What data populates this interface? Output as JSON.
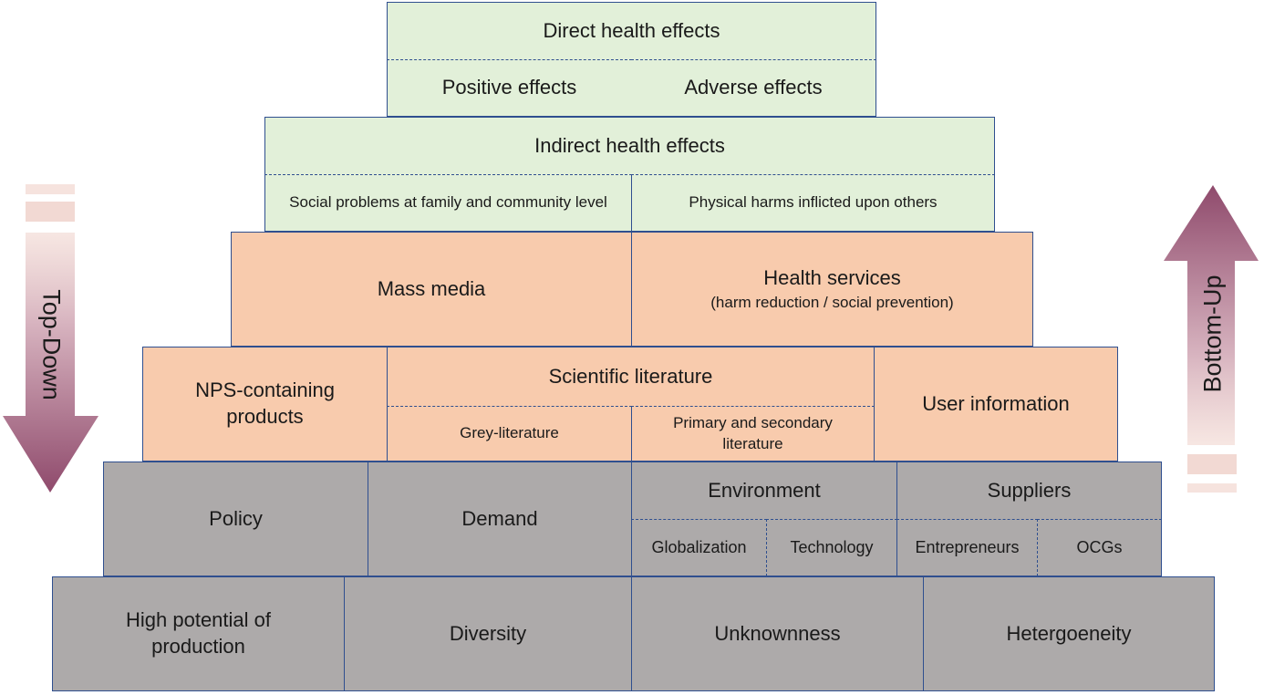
{
  "pyramid": {
    "level1": {
      "title": "Direct health effects",
      "left": "Positive effects",
      "right": "Adverse effects"
    },
    "level2": {
      "title": "Indirect health effects",
      "left": "Social problems at family and community level",
      "right": "Physical harms inflicted upon others"
    },
    "level3": {
      "left": "Mass media",
      "right_title": "Health services",
      "right_sub": "(harm reduction / social prevention)"
    },
    "level4": {
      "left": "NPS-containing products",
      "middle_title": "Scientific literature",
      "middle_left": "Grey-literature",
      "middle_right": "Primary and secondary literature",
      "right": "User information"
    },
    "level5": {
      "policy": "Policy",
      "demand": "Demand",
      "environment": "Environment",
      "globalization": "Globalization",
      "technology": "Technology",
      "suppliers": "Suppliers",
      "entrepreneurs": "Entrepreneurs",
      "ocgs": "OCGs"
    },
    "level6": {
      "c1": "High potential of production",
      "c2": "Diversity",
      "c3": "Unknownness",
      "c4": "Hetergoeneity"
    }
  },
  "arrows": {
    "left_label": "Top-Down",
    "right_label": "Bottom-Up"
  },
  "colors": {
    "green": "#e2f0d9",
    "peach": "#f8cbad",
    "gray": "#adaaaa",
    "arrow": "#8f4a6c",
    "border": "#2f4f8f"
  }
}
